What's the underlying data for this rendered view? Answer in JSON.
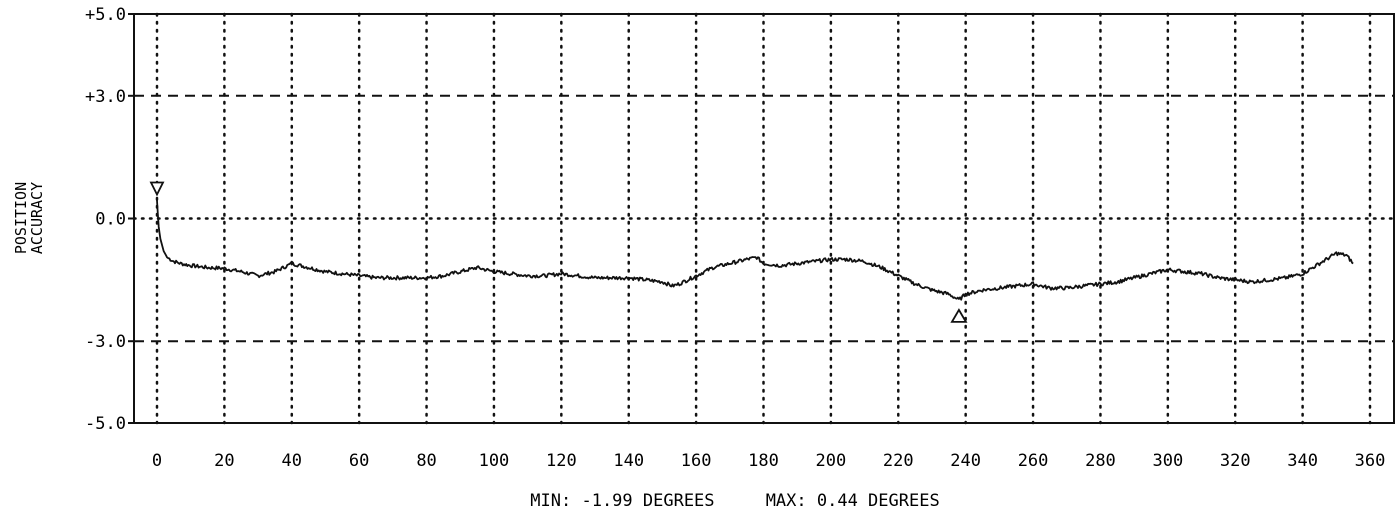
{
  "chart_data": {
    "type": "line",
    "ylabel_lines": [
      "POSITION",
      "ACCURACY"
    ],
    "xlabel": "",
    "xlim": [
      0,
      360
    ],
    "ylim": [
      -5.0,
      5.0
    ],
    "x_ticks": [
      0,
      20,
      40,
      60,
      80,
      100,
      120,
      140,
      160,
      180,
      200,
      220,
      240,
      260,
      280,
      300,
      320,
      340,
      360
    ],
    "x_tick_labels": [
      "0",
      "20",
      "40",
      "60",
      "80",
      "100",
      "120",
      "140",
      "160",
      "180",
      "200",
      "220",
      "240",
      "260",
      "280",
      "300",
      "320",
      "340",
      "360"
    ],
    "y_ticks": [
      5.0,
      3.0,
      0.0,
      -3.0,
      -5.0
    ],
    "y_tick_labels": [
      "+5.0",
      "+3.0",
      "0.0",
      "-3.0",
      "-5.0"
    ],
    "limit_lines": [
      3.0,
      -3.0
    ],
    "zero_line": 0.0,
    "grid": "dotted vertical",
    "series": [
      {
        "x": [
          0,
          0.5,
          1,
          2,
          3,
          5,
          7,
          10,
          15,
          20,
          25,
          30,
          35,
          40,
          45,
          50,
          55,
          60,
          65,
          70,
          75,
          80,
          85,
          90,
          95,
          100,
          105,
          110,
          115,
          120,
          125,
          130,
          135,
          140,
          145,
          150,
          153,
          155,
          160,
          165,
          170,
          175,
          178,
          180,
          185,
          190,
          195,
          200,
          205,
          210,
          215,
          220,
          225,
          230,
          235,
          238,
          240,
          245,
          250,
          255,
          260,
          265,
          270,
          275,
          280,
          285,
          290,
          295,
          300,
          305,
          310,
          315,
          320,
          325,
          330,
          335,
          340,
          345,
          350,
          353,
          355
        ],
        "y": [
          0.44,
          -0.2,
          -0.5,
          -0.8,
          -0.95,
          -1.05,
          -1.1,
          -1.15,
          -1.2,
          -1.22,
          -1.3,
          -1.4,
          -1.3,
          -1.1,
          -1.2,
          -1.3,
          -1.35,
          -1.4,
          -1.45,
          -1.45,
          -1.45,
          -1.45,
          -1.4,
          -1.3,
          -1.2,
          -1.3,
          -1.35,
          -1.4,
          -1.4,
          -1.35,
          -1.4,
          -1.45,
          -1.45,
          -1.45,
          -1.5,
          -1.55,
          -1.65,
          -1.6,
          -1.4,
          -1.2,
          -1.1,
          -1.0,
          -0.95,
          -1.1,
          -1.15,
          -1.1,
          -1.05,
          -1.0,
          -1.0,
          -1.05,
          -1.2,
          -1.4,
          -1.6,
          -1.75,
          -1.85,
          -1.99,
          -1.85,
          -1.75,
          -1.7,
          -1.65,
          -1.6,
          -1.7,
          -1.7,
          -1.65,
          -1.6,
          -1.55,
          -1.45,
          -1.35,
          -1.25,
          -1.3,
          -1.35,
          -1.45,
          -1.5,
          -1.55,
          -1.5,
          -1.45,
          -1.35,
          -1.1,
          -0.85,
          -0.9,
          -1.1
        ]
      }
    ],
    "markers": [
      {
        "type": "max",
        "shape": "triangle-down",
        "x": 0,
        "y": 0.44
      },
      {
        "type": "min",
        "shape": "triangle-up",
        "x": 238,
        "y": -1.99
      }
    ],
    "summary": "MIN: -1.99 DEGREES     MAX: 0.44 DEGREES",
    "colors": {
      "line": "#111111",
      "grid": "#111111",
      "background": "#ffffff"
    }
  }
}
